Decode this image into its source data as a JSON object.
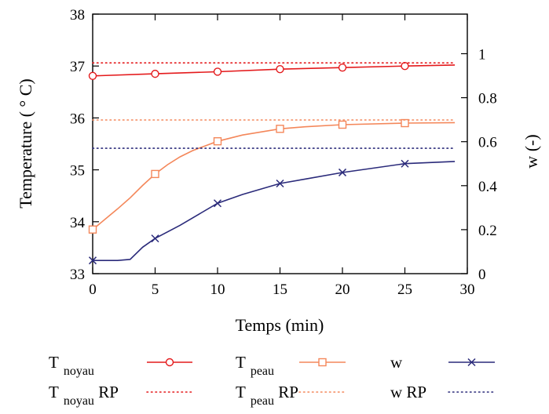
{
  "chart_data": {
    "type": "line",
    "xlabel": "Temps (min)",
    "ylabel": "Temperature ( ° C)",
    "y2label": "w (-)",
    "xlim": [
      0,
      30
    ],
    "ylim": [
      33,
      38
    ],
    "y2lim": [
      0,
      1.18
    ],
    "xticks": [
      "0",
      "5",
      "10",
      "15",
      "20",
      "25",
      "30"
    ],
    "yticks": [
      "33",
      "34",
      "35",
      "36",
      "37",
      "38"
    ],
    "y2ticks": [
      "0",
      "0.2",
      "0.4",
      "0.6",
      "0.8",
      "1"
    ],
    "grid": false,
    "series": [
      {
        "name": "T noyau",
        "axis": "left",
        "color": "#e41a1c",
        "style": "solid",
        "marker": "circle",
        "x": [
          0,
          5,
          10,
          15,
          20,
          25,
          29
        ],
        "values": [
          36.81,
          36.85,
          36.89,
          36.94,
          36.97,
          37.0,
          37.02
        ],
        "marker_x": [
          0,
          5,
          10,
          15,
          20,
          25
        ]
      },
      {
        "name": "T peau",
        "axis": "left",
        "color": "#f4875a",
        "style": "solid",
        "marker": "square",
        "x": [
          0,
          1,
          2,
          3,
          4,
          5,
          6,
          7,
          8,
          9,
          10,
          12,
          15,
          17,
          20,
          25,
          29
        ],
        "values": [
          33.85,
          34.05,
          34.25,
          34.46,
          34.7,
          34.92,
          35.1,
          35.25,
          35.37,
          35.46,
          35.55,
          35.67,
          35.79,
          35.83,
          35.87,
          35.9,
          35.91
        ],
        "marker_x": [
          0,
          5,
          10,
          15,
          20,
          25
        ]
      },
      {
        "name": "w",
        "axis": "right",
        "color": "#2a2a7a",
        "style": "solid",
        "marker": "x",
        "x": [
          0,
          1,
          2,
          3,
          4,
          5,
          7,
          10,
          12,
          15,
          17,
          20,
          25,
          29
        ],
        "values": [
          0.06,
          0.06,
          0.06,
          0.065,
          0.12,
          0.16,
          0.22,
          0.32,
          0.36,
          0.41,
          0.43,
          0.46,
          0.5,
          0.51
        ],
        "marker_x": [
          0,
          5,
          10,
          15,
          20,
          25
        ]
      },
      {
        "name": "T noyau RP",
        "axis": "left",
        "color": "#e41a1c",
        "style": "dotted",
        "x": [
          0,
          29
        ],
        "values": [
          37.06,
          37.06
        ]
      },
      {
        "name": "T peau RP",
        "axis": "left",
        "color": "#f4875a",
        "style": "dotted",
        "x": [
          0,
          29
        ],
        "values": [
          35.96,
          35.96
        ]
      },
      {
        "name": "w RP",
        "axis": "right",
        "color": "#2a2a7a",
        "style": "dotted",
        "x": [
          0,
          29
        ],
        "values": [
          0.57,
          0.57
        ]
      }
    ],
    "legend": {
      "placement": "bottom",
      "entries": [
        {
          "main": "T",
          "sub": "noyau",
          "suffix": "",
          "series": 0
        },
        {
          "main": "T",
          "sub": "peau",
          "suffix": "",
          "series": 1
        },
        {
          "main": "w",
          "sub": "",
          "suffix": "",
          "series": 2
        },
        {
          "main": "T",
          "sub": "noyau",
          "suffix": " RP",
          "series": 3
        },
        {
          "main": "T",
          "sub": "peau",
          "suffix": " RP",
          "series": 4
        },
        {
          "main": "w RP",
          "sub": "",
          "suffix": "",
          "series": 5
        }
      ]
    }
  }
}
